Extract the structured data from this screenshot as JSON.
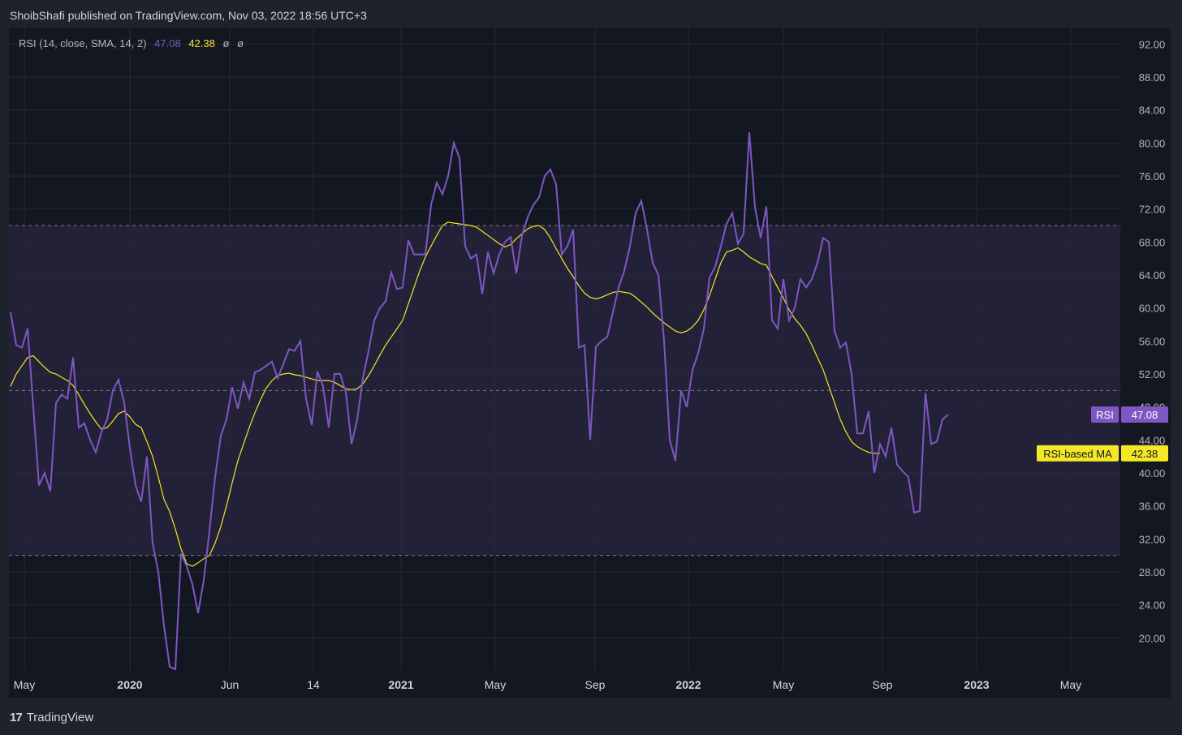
{
  "header": {
    "publisher": "ShoibShafi published on TradingView.com, Nov 03, 2022 18:56 UTC+3"
  },
  "legend": {
    "title": "RSI (14, close, SMA, 14, 2)",
    "rsi_value": "47.08",
    "ma_value": "42.38",
    "empty1": "ø",
    "empty2": "ø"
  },
  "footer": {
    "brand": "TradingView",
    "logo": "17"
  },
  "colors": {
    "rsi": "#7e57c2",
    "ma": "#f5e626",
    "band": "#2a2540",
    "grid": "#242833",
    "text": "#b2b5be"
  },
  "chart_data": {
    "type": "line",
    "x_labels": [
      "May",
      "2020",
      "Jun",
      "14",
      "2021",
      "May",
      "Sep",
      "2022",
      "May",
      "Sep",
      "2023",
      "May"
    ],
    "y_ticks": [
      "92.00",
      "88.00",
      "84.00",
      "80.00",
      "76.00",
      "72.00",
      "68.00",
      "64.00",
      "60.00",
      "56.00",
      "52.00",
      "48.00",
      "44.00",
      "40.00",
      "36.00",
      "32.00",
      "28.00",
      "24.00",
      "20.00"
    ],
    "ylim": [
      16.0,
      94.0
    ],
    "bands": {
      "upper": 70,
      "middle": 50,
      "lower": 30
    },
    "series": [
      {
        "name": "RSI",
        "value_label": "47.08",
        "color": "#7e57c2",
        "values": [
          59.5,
          55.5,
          55.2,
          57.5,
          48,
          38.5,
          40,
          37.8,
          48.5,
          49.5,
          49,
          54,
          45.5,
          46,
          44,
          42.5,
          45,
          46.5,
          50,
          51.3,
          48.5,
          43,
          38.5,
          36.5,
          42,
          31.5,
          28,
          21.5,
          16.5,
          16.2,
          30.2,
          28.7,
          26.5,
          23,
          27,
          33,
          39.5,
          44.5,
          46.5,
          50.4,
          47.8,
          51,
          49,
          52.2,
          52.5,
          53,
          53.5,
          51.5,
          53.2,
          55,
          54.8,
          56,
          49,
          45.8,
          52.3,
          50.5,
          45.5,
          52,
          52,
          49.8,
          43.5,
          46.5,
          51.5,
          54.8,
          58.5,
          60,
          60.8,
          64.3,
          62.3,
          62.5,
          68.2,
          66.5,
          66.5,
          66.5,
          72.5,
          75.2,
          73.8,
          76,
          80,
          78.2,
          67.5,
          66,
          66.5,
          61.7,
          66.8,
          64.2,
          66.5,
          68,
          68.6,
          64.2,
          68.8,
          71,
          72.5,
          73.4,
          76,
          76.8,
          75,
          66.5,
          67.5,
          69.5,
          55.2,
          55.5,
          44,
          55.3,
          56,
          56.5,
          59.5,
          62.5,
          64.5,
          67.5,
          71.5,
          73,
          69.5,
          65.5,
          64,
          56,
          44,
          41.5,
          50,
          48,
          52.5,
          54.5,
          57.5,
          63.7,
          65,
          67.5,
          70.2,
          71.5,
          67.8,
          69,
          81.3,
          72.2,
          68.5,
          72.3,
          58.5,
          57.5,
          63.5,
          58.5,
          60,
          63.5,
          62.5,
          63.5,
          65.5,
          68.5,
          68,
          57.2,
          55.2,
          55.8,
          52,
          44.8,
          44.8,
          47.5,
          40,
          43.5,
          42,
          45.5,
          41,
          40.2,
          39.5,
          35.2,
          35.4,
          49.7,
          43.5,
          43.8,
          46.5,
          47.08
        ]
      },
      {
        "name": "RSI-based MA",
        "value_label": "42.38",
        "color": "#f5e626",
        "values": [
          50.5,
          52,
          53,
          54,
          54.2,
          53.5,
          52.8,
          52.2,
          52,
          51.6,
          51.2,
          50.6,
          49.5,
          48.3,
          47.2,
          46.2,
          45.3,
          45.5,
          46.3,
          47.2,
          47.5,
          46.8,
          45.9,
          45.5,
          43.8,
          42,
          39.5,
          36.8,
          35.3,
          33.2,
          30.8,
          29,
          28.7,
          29.1,
          29.6,
          30,
          31.5,
          33.5,
          36,
          38.8,
          41.5,
          43.5,
          45.5,
          47.3,
          48.9,
          50.3,
          51.2,
          51.8,
          52,
          52.1,
          51.9,
          51.8,
          51.6,
          51.4,
          51.2,
          51.2,
          51.2,
          51,
          50.6,
          50.2,
          50.1,
          50.2,
          50.8,
          51.8,
          53,
          54.3,
          55.5,
          56.5,
          57.5,
          58.5,
          60.5,
          62.5,
          64.5,
          66.2,
          67.5,
          68.8,
          70,
          70.4,
          70.3,
          70.2,
          70.1,
          70,
          69.8,
          69.3,
          68.8,
          68.3,
          67.8,
          67.4,
          67.7,
          68.4,
          69,
          69.6,
          69.9,
          70,
          69.5,
          68.5,
          67.2,
          66,
          64.8,
          63.8,
          62.7,
          61.8,
          61.3,
          61.1,
          61.3,
          61.6,
          61.9,
          62,
          61.9,
          61.8,
          61.3,
          60.7,
          60.1,
          59.4,
          58.8,
          58.2,
          57.7,
          57.2,
          57,
          57.2,
          57.7,
          58.5,
          59.8,
          61.5,
          63.5,
          65.5,
          66.8,
          67,
          67.3,
          66.8,
          66.2,
          65.8,
          65.4,
          65.2,
          63.8,
          62.5,
          61.2,
          59.8,
          58.7,
          57.9,
          56.9,
          55.5,
          54,
          52.5,
          50.5,
          48.5,
          46.5,
          45,
          43.8,
          43.2,
          42.8,
          42.5,
          42.4,
          42.38
        ]
      }
    ]
  }
}
